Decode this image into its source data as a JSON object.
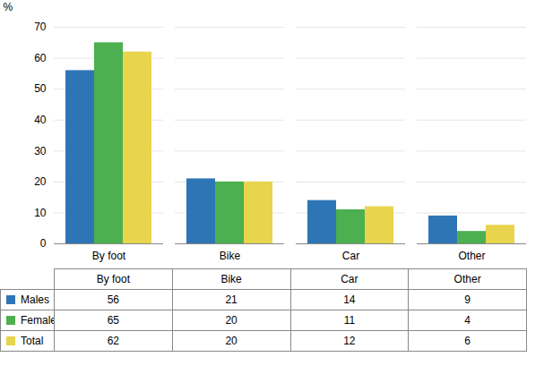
{
  "chart_data": {
    "type": "bar",
    "categories": [
      "By foot",
      "Bike",
      "Car",
      "Other"
    ],
    "series": [
      {
        "name": "Males",
        "color": "#2e75b6",
        "values": [
          56,
          21,
          14,
          9
        ]
      },
      {
        "name": "Females",
        "color": "#4caf50",
        "values": [
          65,
          20,
          11,
          4
        ]
      },
      {
        "name": "Total",
        "color": "#e8d44d",
        "values": [
          62,
          20,
          12,
          6
        ]
      }
    ],
    "ylabel": "%",
    "ylim": [
      0,
      70
    ],
    "yticks": [
      0,
      10,
      20,
      30,
      40,
      50,
      60,
      70
    ],
    "grid": true,
    "legend": "bottom"
  }
}
